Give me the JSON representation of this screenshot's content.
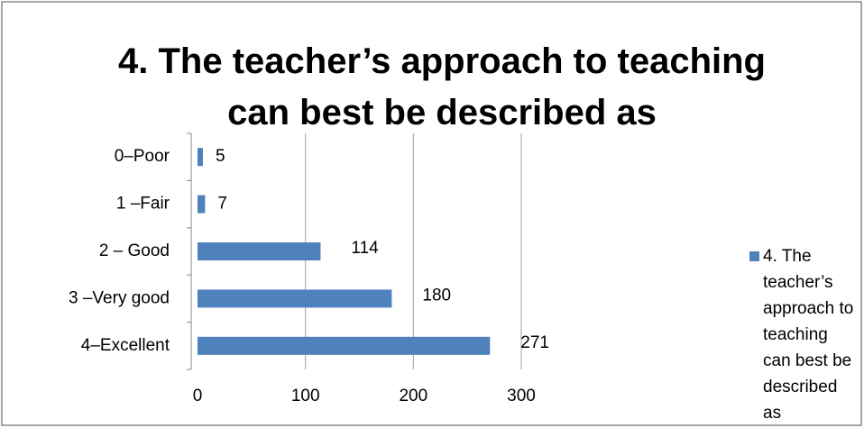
{
  "chart_data": {
    "type": "bar",
    "orientation": "horizontal",
    "title": "4. The teacher’s approach to teaching can best be described as",
    "categories": [
      "0–Poor",
      "1 –Fair",
      "2 – Good",
      "3 –Very good",
      "4–Excellent"
    ],
    "series": [
      {
        "name": "4. The teacher’s approach to teaching can best be described as",
        "color": "#4f81bd",
        "values": [
          5,
          7,
          114,
          180,
          271
        ]
      }
    ],
    "xlim": [
      0,
      300
    ],
    "xticks": [
      0,
      100,
      200,
      300
    ],
    "grid": true,
    "legend": "right"
  }
}
